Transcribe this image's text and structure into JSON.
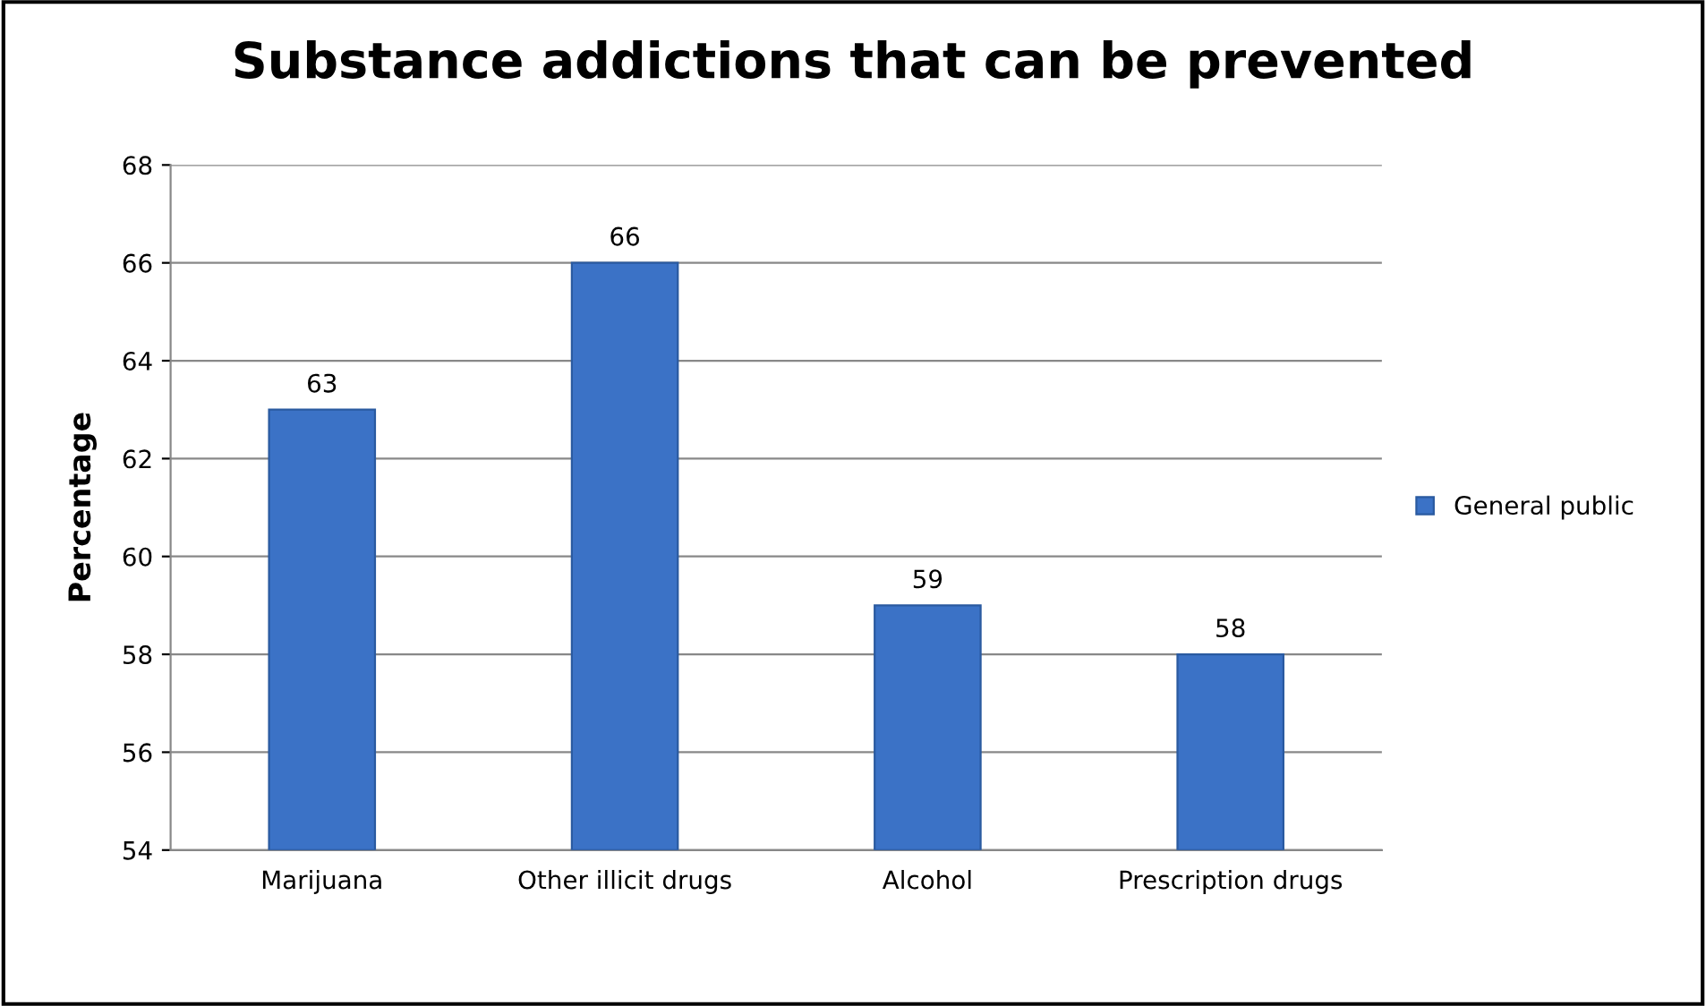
{
  "chart_data": {
    "type": "bar",
    "title": "Substance addictions that can be prevented",
    "ylabel": "Percentage",
    "categories": [
      "Marijuana",
      "Other illicit drugs",
      "Alcohol",
      "Prescription drugs"
    ],
    "series": [
      {
        "name": "General public",
        "color": "#3b72c6",
        "values": [
          63,
          66,
          59,
          58
        ]
      }
    ],
    "ylim": [
      54,
      68
    ],
    "yticks": [
      54,
      56,
      58,
      60,
      62,
      64,
      66,
      68
    ],
    "grid": "y",
    "legend": "right",
    "data_labels": true
  }
}
